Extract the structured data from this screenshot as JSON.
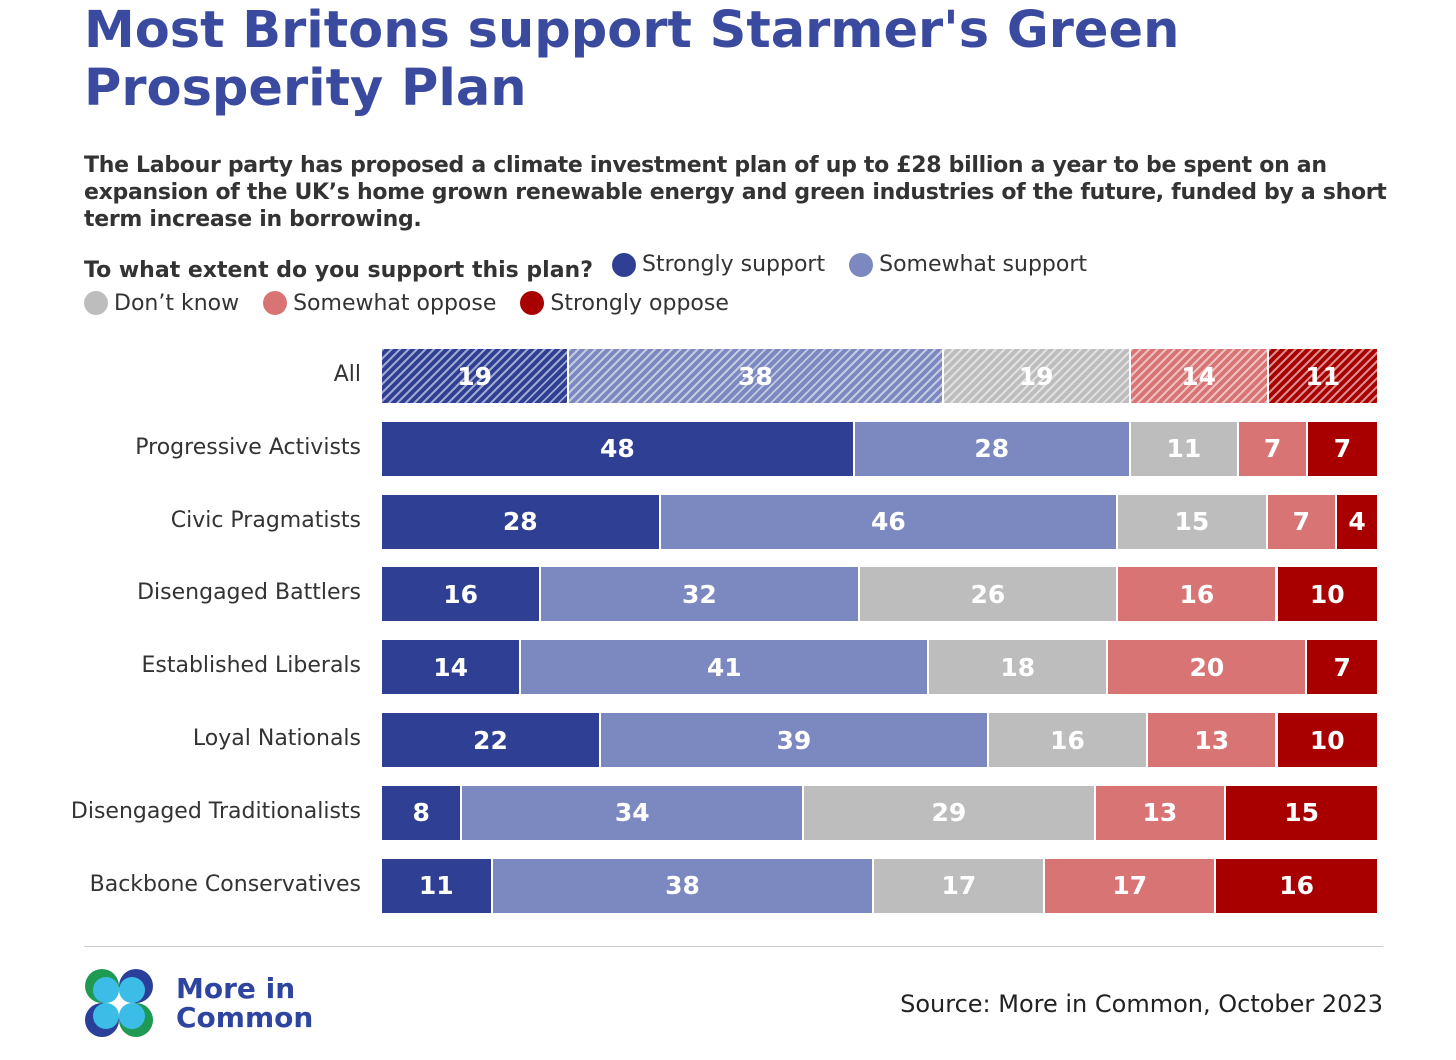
{
  "chart_data": {
    "type": "bar",
    "orientation": "horizontal-stacked-100",
    "title": "Most Britons support Starmer's Green Prosperity Plan",
    "subtitle": "The Labour party has proposed a climate investment plan of up to £28 billion a year to be spent on an expansion of the UK’s home grown renewable energy and green industries of the future, funded by a short term increase in borrowing.",
    "question": "To what extent do you support this plan?",
    "categories": [
      "All",
      "Progressive Activists",
      "Civic Pragmatists",
      "Disengaged Battlers",
      "Established Liberals",
      "Loyal Nationals",
      "Disengaged Traditionalists",
      "Backbone Conservatives"
    ],
    "series": [
      {
        "name": "Strongly support",
        "color": "#2e3f94",
        "values": [
          19,
          48,
          28,
          16,
          14,
          22,
          8,
          11
        ]
      },
      {
        "name": "Somewhat support",
        "color": "#7b89c0",
        "values": [
          38,
          28,
          46,
          32,
          41,
          39,
          34,
          38
        ]
      },
      {
        "name": "Don’t know",
        "color": "#bdbdbd",
        "values": [
          19,
          11,
          15,
          26,
          18,
          16,
          29,
          17
        ]
      },
      {
        "name": "Somewhat oppose",
        "color": "#d87474",
        "values": [
          14,
          7,
          7,
          16,
          20,
          13,
          13,
          17
        ]
      },
      {
        "name": "Strongly oppose",
        "color": "#a80000",
        "values": [
          11,
          7,
          4,
          10,
          7,
          10,
          15,
          16
        ]
      }
    ],
    "hatched_rows": [
      "All"
    ],
    "legend_placement": "top",
    "grid": false
  },
  "footer": {
    "logo_text_line1": "More in",
    "logo_text_line2": "Common",
    "source": "Source: More in Common, October 2023"
  }
}
